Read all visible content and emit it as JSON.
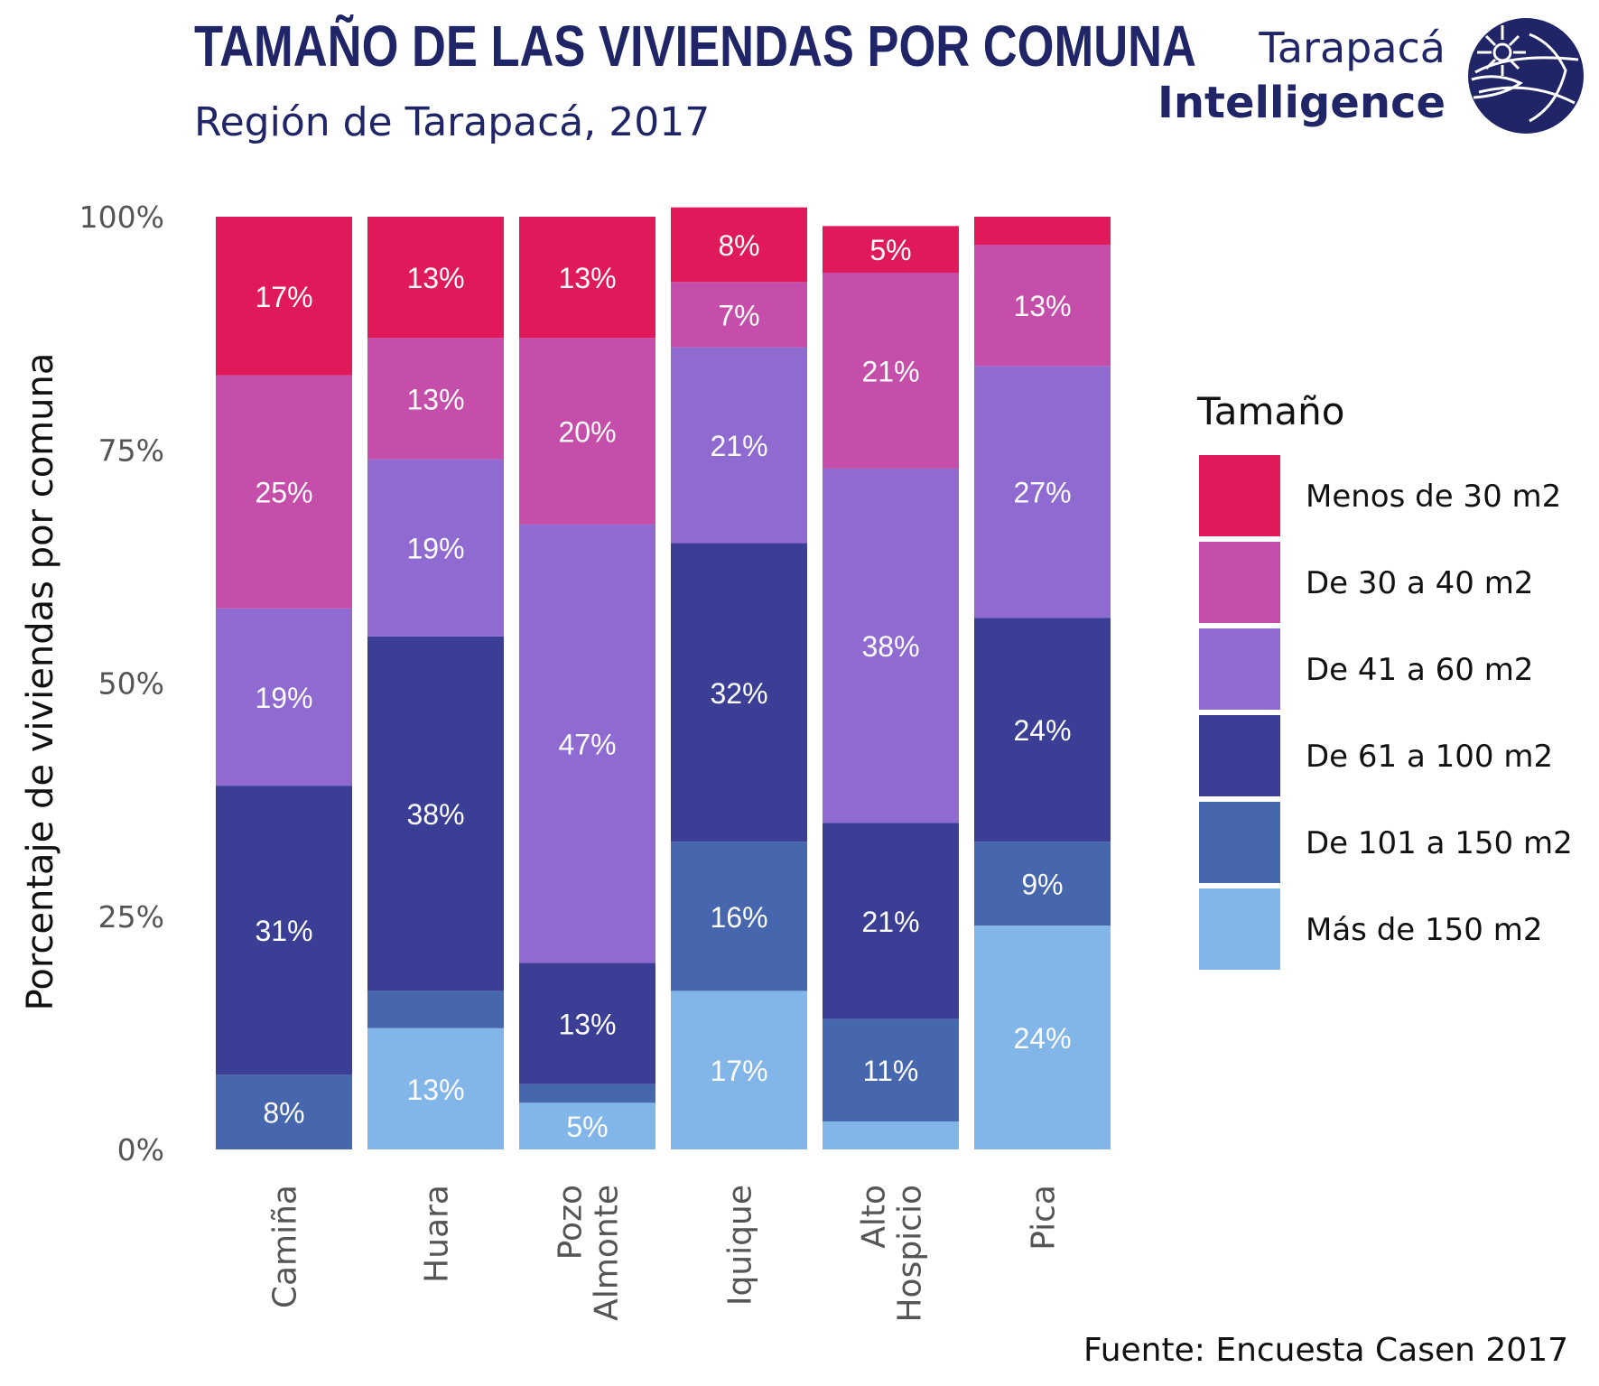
{
  "header": {
    "title": "TAMAÑO DE LAS VIVIENDAS POR COMUNA",
    "subtitle": "Región de Tarapacá, 2017",
    "logo_line1": "Tarapacá",
    "logo_line2": "Intelligence",
    "source": "Fuente: Encuesta Casen 2017"
  },
  "colors": {
    "menos30": "#e0195a",
    "30a40": "#c44ea9",
    "41a60": "#8f6ad0",
    "61a100": "#3a3f95",
    "101a150": "#4667ad",
    "mas150": "#82b6e8",
    "brand": "#1f2566"
  },
  "chart_data": {
    "type": "bar",
    "stacked": true,
    "title": "TAMAÑO DE LAS VIVIENDAS POR COMUNA",
    "subtitle": "Región de Tarapacá, 2017",
    "xlabel": "",
    "ylabel": "Porcentaje de viviendas por comuna",
    "ylim": [
      0,
      1
    ],
    "yticks": [
      "0%",
      "25%",
      "50%",
      "75%",
      "100%"
    ],
    "categories": [
      [
        "Camiña"
      ],
      [
        "Huara"
      ],
      [
        "Pozo",
        "Almonte"
      ],
      [
        "Iquique"
      ],
      [
        "Alto",
        "Hospicio"
      ],
      [
        "Pica"
      ]
    ],
    "legend_title": "Tamaño",
    "legend_position": "right",
    "series": [
      {
        "name": "Más de 150 m2",
        "color_key": "mas150",
        "values": [
          0.0,
          0.13,
          0.05,
          0.17,
          0.03,
          0.24
        ],
        "labels": [
          "",
          "13%",
          "5%",
          "17%",
          "",
          "24%"
        ]
      },
      {
        "name": "De 101 a 150 m2",
        "color_key": "101a150",
        "values": [
          0.08,
          0.04,
          0.02,
          0.16,
          0.11,
          0.09
        ],
        "labels": [
          "8%",
          "",
          "",
          "16%",
          "11%",
          "9%"
        ]
      },
      {
        "name": "De 61 a 100 m2",
        "color_key": "61a100",
        "values": [
          0.31,
          0.38,
          0.13,
          0.32,
          0.21,
          0.24
        ],
        "labels": [
          "31%",
          "38%",
          "13%",
          "32%",
          "21%",
          "24%"
        ]
      },
      {
        "name": "De 41 a 60 m2",
        "color_key": "41a60",
        "values": [
          0.19,
          0.19,
          0.47,
          0.21,
          0.38,
          0.27
        ],
        "labels": [
          "19%",
          "19%",
          "47%",
          "21%",
          "38%",
          "27%"
        ]
      },
      {
        "name": "De 30 a 40 m2",
        "color_key": "30a40",
        "values": [
          0.25,
          0.13,
          0.2,
          0.07,
          0.21,
          0.13
        ],
        "labels": [
          "25%",
          "13%",
          "20%",
          "7%",
          "21%",
          "13%"
        ]
      },
      {
        "name": "Menos de 30 m2",
        "color_key": "menos30",
        "values": [
          0.17,
          0.13,
          0.13,
          0.08,
          0.05,
          0.03
        ],
        "labels": [
          "17%",
          "13%",
          "13%",
          "8%",
          "5%",
          ""
        ]
      }
    ]
  }
}
